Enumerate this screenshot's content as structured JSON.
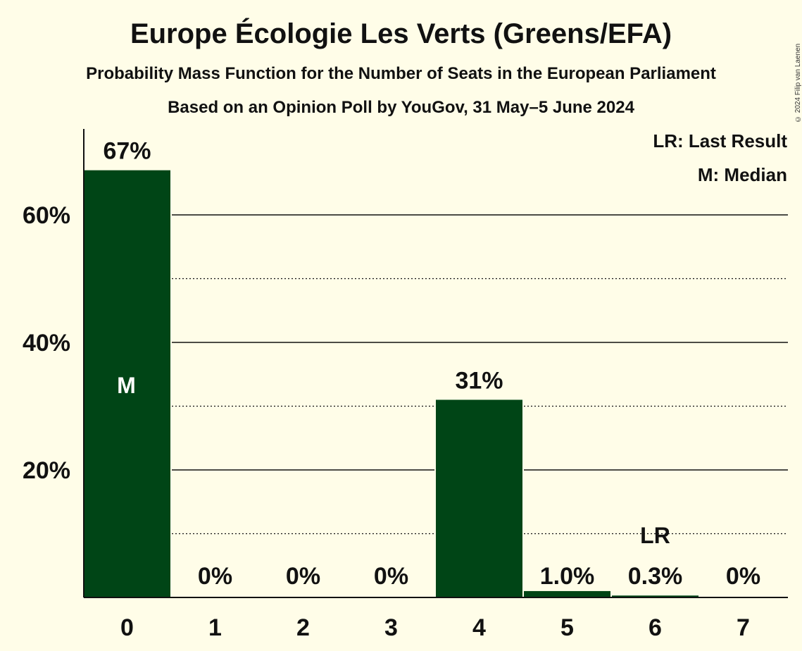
{
  "chart_data": {
    "type": "bar",
    "title": "Europe Écologie Les Verts (Greens/EFA)",
    "subtitle": "Probability Mass Function for the Number of Seats in the European Parliament",
    "subtitle2": "Based on an Opinion Poll by YouGov, 31 May–5 June 2024",
    "categories": [
      "0",
      "1",
      "2",
      "3",
      "4",
      "5",
      "6",
      "7"
    ],
    "values": [
      67,
      0,
      0,
      0,
      31,
      1.0,
      0.3,
      0
    ],
    "value_labels": [
      "67%",
      "0%",
      "0%",
      "0%",
      "31%",
      "1.0%",
      "0.3%",
      "0%"
    ],
    "ylim": [
      0,
      73
    ],
    "yticks": [
      20,
      40,
      60
    ],
    "ytick_labels": [
      "20%",
      "40%",
      "60%"
    ],
    "minor_gridlines": [
      10,
      30,
      50
    ],
    "grid": true,
    "median_index": 0,
    "median_marker": "M",
    "last_result_index": 6,
    "last_result_marker": "LR",
    "legend": [
      "LR: Last Result",
      "M: Median"
    ],
    "legend_position": "top-right",
    "bar_color": "#004516",
    "background_color": "#fffde8"
  },
  "copyright": "© 2024 Filip van Laenen"
}
